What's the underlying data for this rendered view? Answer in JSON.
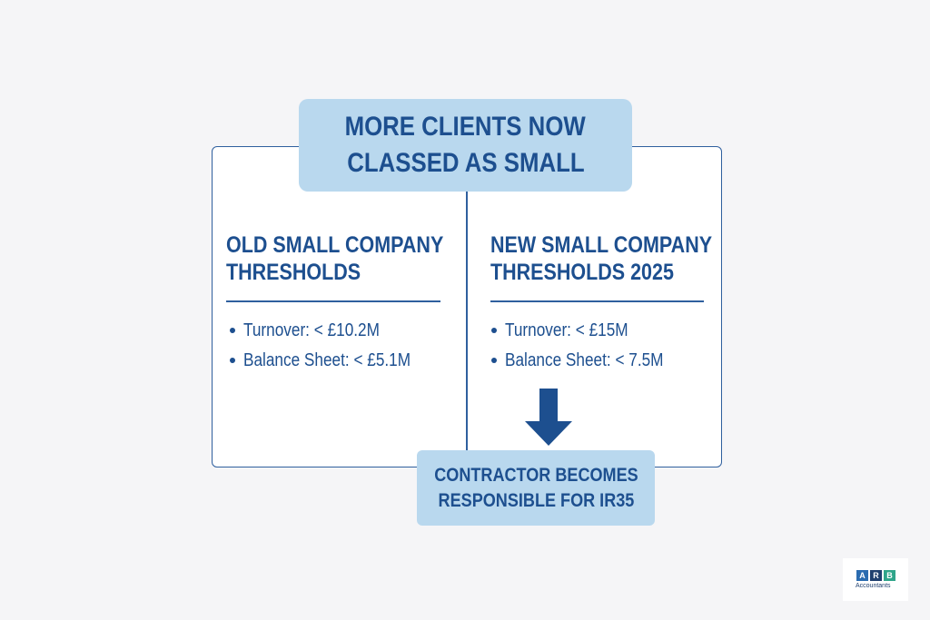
{
  "banner": {
    "lines": [
      "MORE CLIENTS NOW",
      "CLASSED AS SMALL"
    ]
  },
  "panels": [
    {
      "title": [
        "OLD SMALL COMPANY",
        "THRESHOLDS"
      ],
      "items": [
        "Turnover: < £10.2M",
        "Balance Sheet: < £5.1M"
      ]
    },
    {
      "title": [
        "NEW SMALL COMPANY",
        "THRESHOLDS 2025"
      ],
      "items": [
        "Turnover: < £15M",
        "Balance Sheet: < 7.5M"
      ]
    }
  ],
  "result": {
    "lines": [
      "CONTRACTOR BECOMES",
      "RESPONSIBLE FOR IR35"
    ]
  },
  "logo": {
    "letters": [
      "A",
      "R",
      "B"
    ],
    "name": "Accountants"
  }
}
